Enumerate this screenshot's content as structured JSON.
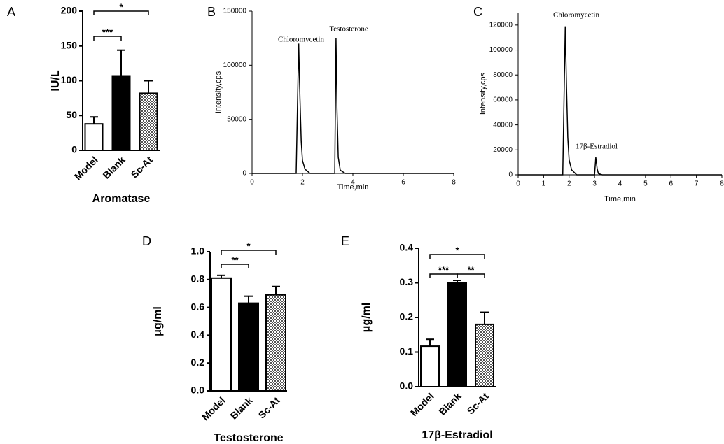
{
  "chart_data": [
    {
      "type": "bar",
      "panel_label": "A",
      "ylabel": "IU/L",
      "xlabel": "Aromatase",
      "categories": [
        "Model",
        "Blank",
        "Sc-At"
      ],
      "values": [
        38,
        107,
        82
      ],
      "errors": [
        10,
        37,
        18
      ],
      "colors": [
        "#ffffff",
        "#000000",
        "#a8a8a8"
      ],
      "ylim": [
        0,
        200
      ],
      "yticks": [
        0,
        50,
        100,
        150,
        200
      ],
      "significance": [
        {
          "label": "***",
          "between": [
            "Model",
            "Blank"
          ]
        },
        {
          "label": "*",
          "between": [
            "Model",
            "Sc-At"
          ]
        }
      ]
    },
    {
      "type": "line",
      "panel_label": "B",
      "ylabel": "Intensity,cps",
      "xlabel": "Time,min",
      "color": "#000000",
      "x": [
        0,
        1.75,
        1.8,
        1.85,
        1.9,
        1.95,
        2.0,
        2.1,
        2.3,
        3.28,
        3.33,
        3.37,
        3.42,
        3.5,
        3.7,
        8
      ],
      "values": [
        0,
        0,
        60000,
        120000,
        70000,
        30000,
        12000,
        4000,
        0,
        0,
        125000,
        60000,
        15000,
        3000,
        0,
        0
      ],
      "xlim": [
        0,
        8
      ],
      "xticks": [
        0,
        2,
        4,
        6,
        8
      ],
      "ylim": [
        0,
        150000
      ],
      "yticks": [
        0,
        50000,
        100000,
        150000
      ],
      "annotations": [
        "Chloromycetin",
        "Testosterone"
      ]
    },
    {
      "type": "line",
      "panel_label": "C",
      "ylabel": "Intensity,cps",
      "xlabel": "Time,min",
      "color": "#000000",
      "x": [
        0,
        1.75,
        1.8,
        1.85,
        1.9,
        1.95,
        2.0,
        2.1,
        2.3,
        3.0,
        3.05,
        3.1,
        3.15,
        3.3,
        8
      ],
      "values": [
        0,
        0,
        60000,
        119000,
        70000,
        30000,
        12000,
        4000,
        0,
        0,
        14000,
        5000,
        1000,
        0,
        0
      ],
      "xlim": [
        0,
        8
      ],
      "xticks": [
        0,
        1,
        2,
        3,
        4,
        5,
        6,
        7,
        8
      ],
      "ylim": [
        0,
        130000
      ],
      "yticks": [
        0,
        20000,
        40000,
        60000,
        80000,
        100000,
        120000
      ],
      "annotations": [
        "Chloromycetin",
        "17β-Estradiol"
      ]
    },
    {
      "type": "bar",
      "panel_label": "D",
      "ylabel": "μg/ml",
      "xlabel": "Testosterone",
      "categories": [
        "Model",
        "Blank",
        "Sc-At"
      ],
      "values": [
        0.81,
        0.63,
        0.69
      ],
      "errors": [
        0.02,
        0.05,
        0.06
      ],
      "colors": [
        "#ffffff",
        "#000000",
        "#a8a8a8"
      ],
      "ylim": [
        0,
        1
      ],
      "yticks": [
        {
          "value": 0,
          "label": "0.0"
        },
        0.2,
        0.4,
        0.6,
        0.8,
        {
          "value": 1,
          "label": "1.0"
        }
      ],
      "significance": [
        {
          "label": "**",
          "between": [
            "Model",
            "Blank"
          ]
        },
        {
          "label": "*",
          "between": [
            "Model",
            "Sc-At"
          ]
        }
      ]
    },
    {
      "type": "bar",
      "panel_label": "E",
      "ylabel": "μg/ml",
      "xlabel": "17β-Estradiol",
      "categories": [
        "Model",
        "Blank",
        "Sc-At"
      ],
      "values": [
        0.117,
        0.3,
        0.18
      ],
      "errors": [
        0.02,
        0.007,
        0.035
      ],
      "colors": [
        "#ffffff",
        "#000000",
        "#a8a8a8"
      ],
      "ylim": [
        0,
        0.4
      ],
      "yticks": [
        {
          "value": 0,
          "label": "0.0"
        },
        0.1,
        0.2,
        0.3,
        0.4
      ],
      "significance": [
        {
          "label": "***",
          "between": [
            "Model",
            "Blank"
          ]
        },
        {
          "label": "**",
          "between": [
            "Blank",
            "Sc-At"
          ]
        },
        {
          "label": "*",
          "between": [
            "Model",
            "Sc-At"
          ]
        }
      ]
    }
  ]
}
